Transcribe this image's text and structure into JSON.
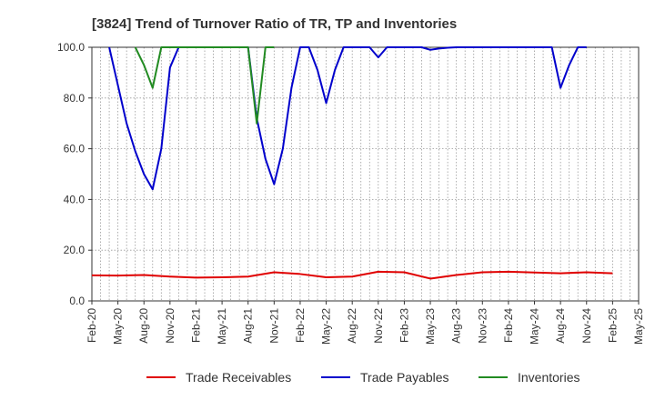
{
  "chart_data": {
    "type": "line",
    "title": "[3824]  Trend of Turnover Ratio of TR, TP and Inventories",
    "xlabel": "",
    "ylabel": "",
    "ylim": [
      0,
      100
    ],
    "yticks": [
      "0.0",
      "20.0",
      "40.0",
      "60.0",
      "80.0",
      "100.0"
    ],
    "xlim": [
      "2020-02",
      "2025-05"
    ],
    "xticks": [
      "Feb-20",
      "May-20",
      "Aug-20",
      "Nov-20",
      "Feb-21",
      "May-21",
      "Aug-21",
      "Nov-21",
      "Feb-22",
      "May-22",
      "Aug-22",
      "Nov-22",
      "Feb-23",
      "May-23",
      "Aug-23",
      "Nov-23",
      "Feb-24",
      "May-24",
      "Aug-24",
      "Nov-24",
      "Feb-25",
      "May-25"
    ],
    "grid": true,
    "legend": "bottom",
    "series": [
      {
        "name": "Trade Receivables",
        "color": "#e00000",
        "x": [
          "2020-02",
          "2020-05",
          "2020-08",
          "2020-11",
          "2021-02",
          "2021-05",
          "2021-08",
          "2021-11",
          "2022-02",
          "2022-05",
          "2022-08",
          "2022-11",
          "2023-02",
          "2023-05",
          "2023-08",
          "2023-11",
          "2024-02",
          "2024-05",
          "2024-08",
          "2024-11",
          "2025-02"
        ],
        "y": [
          10.1,
          10.0,
          10.2,
          9.6,
          9.2,
          9.3,
          9.6,
          11.3,
          10.6,
          9.3,
          9.6,
          11.5,
          11.3,
          8.8,
          10.2,
          11.3,
          11.5,
          11.2,
          10.9,
          11.3,
          10.9
        ]
      },
      {
        "name": "Trade Payables",
        "color": "#0000cc",
        "x": [
          "2020-04",
          "2020-05",
          "2020-06",
          "2020-07",
          "2020-08",
          "2020-09",
          "2020-10",
          "2020-11",
          "2020-12",
          "2021-01",
          "2021-02",
          "2021-06",
          "2021-07",
          "2021-08",
          "2021-09",
          "2021-10",
          "2021-11",
          "2021-12",
          "2022-01",
          "2022-02",
          "2022-03",
          "2022-04",
          "2022-05",
          "2022-06",
          "2022-07",
          "2022-10",
          "2022-11",
          "2022-12",
          "2023-04",
          "2023-05",
          "2023-06",
          "2023-07",
          "2023-08",
          "2024-06",
          "2024-07",
          "2024-08",
          "2024-09",
          "2024-10",
          "2024-11"
        ],
        "y": [
          100,
          85,
          70,
          59,
          50,
          44,
          60,
          92,
          100,
          100,
          100,
          100,
          100,
          100,
          72,
          56,
          46,
          60,
          84,
          100,
          100,
          91,
          78,
          91,
          100,
          100,
          96,
          100,
          100,
          99,
          99.5,
          99.8,
          100,
          100,
          100,
          84,
          93,
          100,
          100
        ],
        "note_display": "clipped at axis max 100"
      },
      {
        "name": "Inventories",
        "color": "#228b22",
        "x": [
          "2020-07",
          "2020-08",
          "2020-09",
          "2020-10",
          "2021-07",
          "2021-08",
          "2021-09",
          "2021-10",
          "2021-11"
        ],
        "y": [
          100,
          93,
          84,
          100,
          100,
          100,
          70,
          100,
          100
        ]
      }
    ]
  }
}
